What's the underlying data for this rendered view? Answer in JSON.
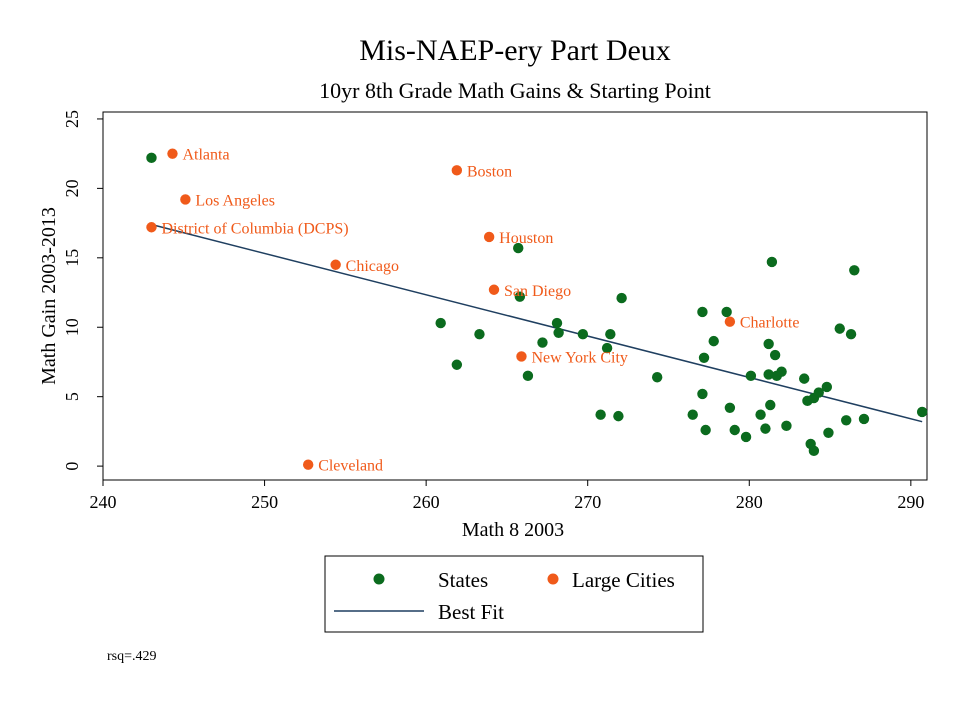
{
  "chart_data": {
    "type": "scatter",
    "title": "Mis-NAEP-ery Part Deux",
    "subtitle": "10yr 8th Grade Math Gains & Starting Point",
    "xlabel": "Math 8 2003",
    "ylabel": "Math Gain 2003-2013",
    "xlim": [
      240,
      291
    ],
    "ylim": [
      -1,
      25.5
    ],
    "xticks": [
      240,
      250,
      260,
      270,
      280,
      290
    ],
    "yticks": [
      0,
      5,
      10,
      15,
      20,
      25
    ],
    "grid": false,
    "legend_position": "bottom",
    "colors": {
      "states": "#0b6b1e",
      "cities": "#f05a1a",
      "fit": "#1f3f60"
    },
    "series": [
      {
        "name": "States",
        "points": [
          [
            243,
            22.2
          ],
          [
            260.9,
            10.3
          ],
          [
            261.9,
            7.3
          ],
          [
            263.3,
            9.5
          ],
          [
            265.7,
            15.7
          ],
          [
            265.8,
            12.2
          ],
          [
            266.3,
            6.5
          ],
          [
            267.2,
            8.9
          ],
          [
            268.1,
            10.3
          ],
          [
            268.2,
            9.6
          ],
          [
            269.7,
            9.5
          ],
          [
            270.8,
            3.7
          ],
          [
            271.2,
            8.5
          ],
          [
            271.4,
            9.5
          ],
          [
            271.9,
            3.6
          ],
          [
            272.1,
            12.1
          ],
          [
            274.3,
            6.4
          ],
          [
            276.5,
            3.7
          ],
          [
            277.1,
            11.1
          ],
          [
            277.1,
            5.2
          ],
          [
            277.2,
            7.8
          ],
          [
            277.3,
            2.6
          ],
          [
            277.8,
            9.0
          ],
          [
            278.6,
            11.1
          ],
          [
            278.8,
            4.2
          ],
          [
            279.1,
            2.6
          ],
          [
            279.8,
            2.1
          ],
          [
            280.1,
            6.5
          ],
          [
            280.7,
            3.7
          ],
          [
            281.0,
            2.7
          ],
          [
            281.2,
            8.8
          ],
          [
            281.2,
            6.6
          ],
          [
            281.3,
            4.4
          ],
          [
            281.4,
            14.7
          ],
          [
            281.6,
            8.0
          ],
          [
            281.7,
            6.5
          ],
          [
            282.0,
            6.8
          ],
          [
            282.3,
            2.9
          ],
          [
            283.4,
            6.3
          ],
          [
            283.6,
            4.7
          ],
          [
            283.8,
            1.6
          ],
          [
            284.0,
            4.9
          ],
          [
            284.0,
            1.1
          ],
          [
            284.3,
            5.3
          ],
          [
            284.8,
            5.7
          ],
          [
            284.9,
            2.4
          ],
          [
            285.6,
            9.9
          ],
          [
            286.0,
            3.3
          ],
          [
            286.3,
            9.5
          ],
          [
            286.5,
            14.1
          ],
          [
            287.1,
            3.4
          ],
          [
            290.7,
            3.9
          ]
        ]
      },
      {
        "name": "Large Cities",
        "points": [
          {
            "label": "Atlanta",
            "x": 244.3,
            "y": 22.5
          },
          {
            "label": "Boston",
            "x": 261.9,
            "y": 21.3
          },
          {
            "label": "Los Angeles",
            "x": 245.1,
            "y": 19.2
          },
          {
            "label": "District of Columbia (DCPS)",
            "x": 243.0,
            "y": 17.2
          },
          {
            "label": "Houston",
            "x": 263.9,
            "y": 16.5
          },
          {
            "label": "Chicago",
            "x": 254.4,
            "y": 14.5
          },
          {
            "label": "San Diego",
            "x": 264.2,
            "y": 12.7
          },
          {
            "label": "Charlotte",
            "x": 278.8,
            "y": 10.4
          },
          {
            "label": "New York City",
            "x": 265.9,
            "y": 7.9
          },
          {
            "label": "Cleveland",
            "x": 252.7,
            "y": 0.1
          }
        ]
      }
    ],
    "best_fit": {
      "name": "Best Fit",
      "x": [
        243.0,
        290.7
      ],
      "y": [
        17.4,
        3.2
      ]
    },
    "note": "rsq=.429"
  }
}
